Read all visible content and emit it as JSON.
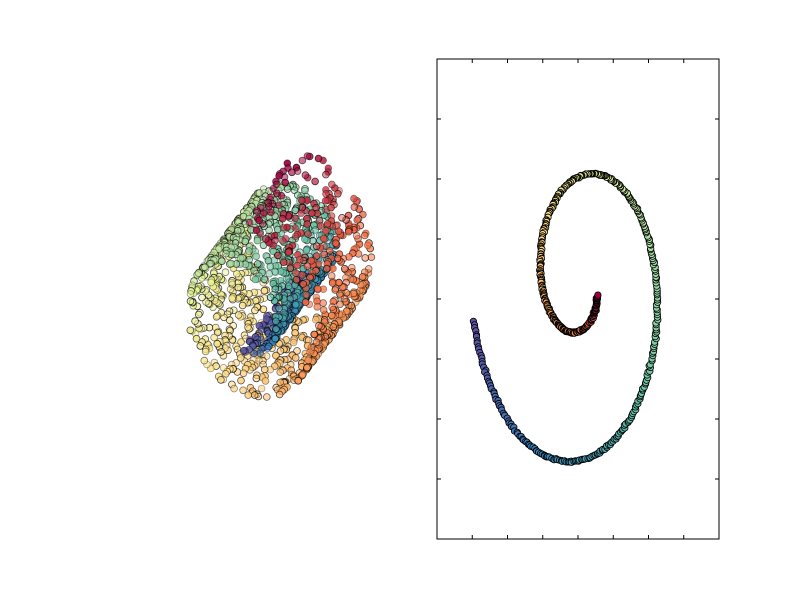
{
  "figure": {
    "panels": 2
  },
  "chart_data": [
    {
      "type": "scatter",
      "projection": "3d",
      "title": "",
      "axes_visible": false,
      "colormap": "spectral",
      "shape": "swiss-roll",
      "series": [
        {
          "points": [
            {
              "x": -1.0,
              "y": 0.9,
              "t": 0.02
            },
            {
              "x": -0.95,
              "y": 1.1,
              "t": 0.05
            },
            {
              "x": -0.86,
              "y": 1.35,
              "t": 0.1
            },
            {
              "x": -0.7,
              "y": 1.62,
              "t": 0.18
            },
            {
              "x": -0.48,
              "y": 1.86,
              "t": 0.26
            },
            {
              "x": -0.2,
              "y": 2.0,
              "t": 0.34
            },
            {
              "x": 0.1,
              "y": 1.96,
              "t": 0.42
            },
            {
              "x": 0.38,
              "y": 1.72,
              "t": 0.5
            },
            {
              "x": 0.55,
              "y": 1.34,
              "t": 0.58
            },
            {
              "x": 0.58,
              "y": 0.9,
              "t": 0.66
            },
            {
              "x": 0.44,
              "y": 0.5,
              "t": 0.74
            },
            {
              "x": 0.18,
              "y": 0.26,
              "t": 0.82
            },
            {
              "x": -0.1,
              "y": 0.3,
              "t": 0.88
            },
            {
              "x": -0.28,
              "y": 0.52,
              "t": 0.94
            },
            {
              "x": -0.22,
              "y": 0.8,
              "t": 0.99
            }
          ]
        }
      ]
    },
    {
      "type": "scatter",
      "title": "",
      "xlabel": "",
      "ylabel": "",
      "tick_labels_visible": false,
      "grid": false,
      "colormap": "spectral",
      "xlim": [
        0,
        8
      ],
      "ylim": [
        0,
        8
      ],
      "x_ticks": [
        1,
        2,
        3,
        4,
        5,
        6,
        7
      ],
      "y_ticks": [
        1,
        2,
        3,
        4,
        5,
        6,
        7
      ],
      "spiral": {
        "center": [
          3.9,
          3.8
        ],
        "start_radius": 0.35,
        "end_radius": 3.45,
        "turns": 1.35,
        "start_angle_deg": 135
      }
    }
  ]
}
